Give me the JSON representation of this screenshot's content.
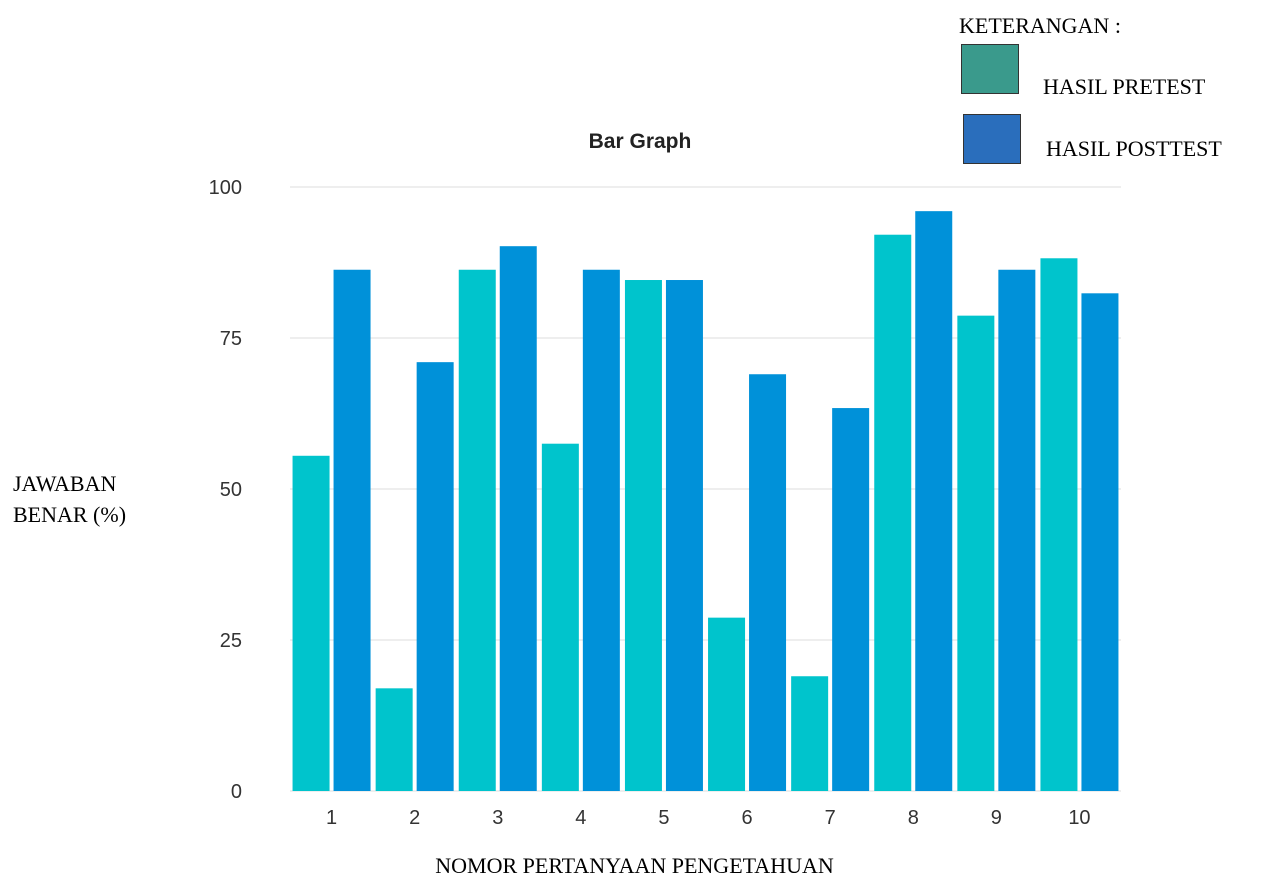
{
  "legend": {
    "title": "KETERANGAN :",
    "items": [
      {
        "label": "HASIL PRETEST",
        "color": "#3a9a8c"
      },
      {
        "label": "HASIL POSTTEST",
        "color": "#2a6ebc"
      }
    ]
  },
  "chart_data": {
    "type": "bar",
    "title": "Bar Graph",
    "xlabel": "NOMOR PERTANYAAN PENGETAHUAN",
    "ylabel_lines": [
      "JAWABAN",
      "BENAR (%)"
    ],
    "categories": [
      "1",
      "2",
      "3",
      "4",
      "5",
      "6",
      "7",
      "8",
      "9",
      "10"
    ],
    "series": [
      {
        "values": [
          55.5,
          17,
          86.3,
          57.5,
          84.6,
          28.7,
          19,
          92.1,
          78.7,
          88.2
        ],
        "color": "#00c4cc"
      },
      {
        "values": [
          86.3,
          71,
          90.2,
          86.3,
          84.6,
          69,
          63.4,
          96,
          86.3,
          82.4
        ],
        "color": "#0091d9"
      }
    ],
    "ylim": [
      0,
      100
    ],
    "yticks": [
      "0",
      "25",
      "50",
      "75",
      "100"
    ],
    "grid": true,
    "legend_position": "top-right"
  }
}
